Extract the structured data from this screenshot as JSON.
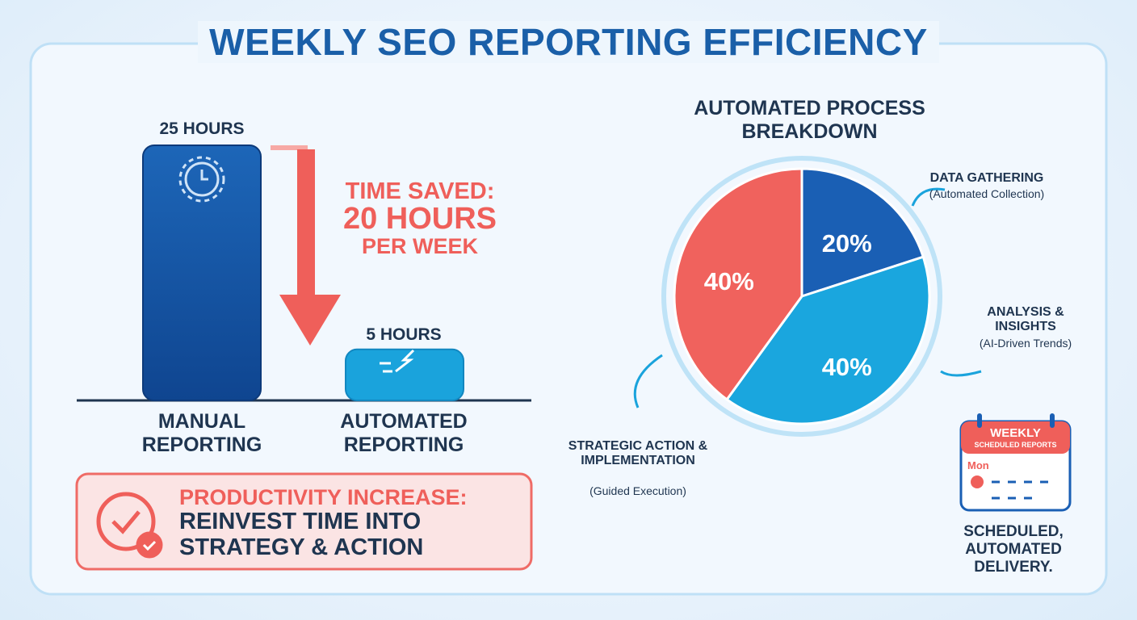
{
  "title": "WEEKLY SEO REPORTING EFFICIENCY",
  "chart_data": [
    {
      "type": "bar",
      "categories": [
        "MANUAL REPORTING",
        "AUTOMATED REPORTING"
      ],
      "values": [
        25,
        5
      ],
      "value_labels": [
        "25 HOURS",
        "5 HOURS"
      ],
      "colors": [
        "#1858a8",
        "#1aa3dc"
      ],
      "annotation": {
        "heading": "TIME SAVED:",
        "amount": "20 HOURS",
        "period": "PER WEEK"
      }
    },
    {
      "type": "pie",
      "title": "AUTOMATED PROCESS BREAKDOWN",
      "categories": [
        "DATA GATHERING",
        "ANALYSIS & INSIGHTS",
        "STRATEGIC ACTION & IMPLEMENTATION"
      ],
      "category_notes": [
        "(Automated Collection)",
        "(AI-Driven Trends)",
        "(Guided Execution)"
      ],
      "values": [
        20,
        40,
        40
      ],
      "value_labels": [
        "20%",
        "40%",
        "40%"
      ],
      "colors": [
        "#1a5fb4",
        "#1aa6de",
        "#f0625d"
      ]
    }
  ],
  "productivity": {
    "heading": "PRODUCTIVITY INCREASE:",
    "text": "REINVEST TIME INTO STRATEGY & ACTION"
  },
  "calendar": {
    "header": "WEEKLY",
    "subheader": "SCHEDULED REPORTS",
    "day": "Mon",
    "caption": "SCHEDULED, AUTOMATED DELIVERY."
  }
}
